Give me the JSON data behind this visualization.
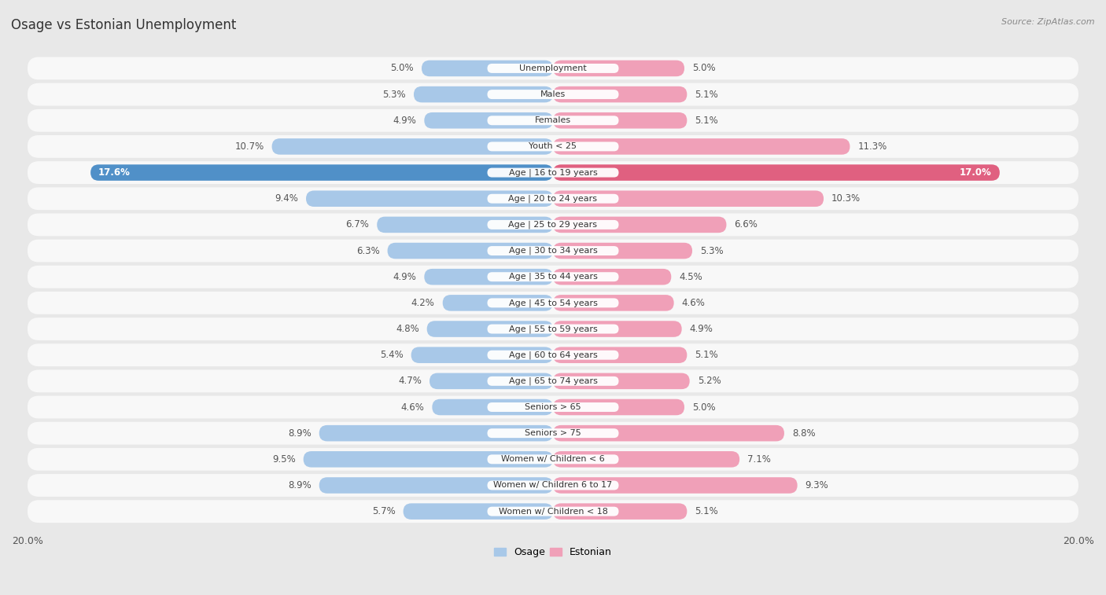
{
  "title": "Osage vs Estonian Unemployment",
  "source": "Source: ZipAtlas.com",
  "categories": [
    "Unemployment",
    "Males",
    "Females",
    "Youth < 25",
    "Age | 16 to 19 years",
    "Age | 20 to 24 years",
    "Age | 25 to 29 years",
    "Age | 30 to 34 years",
    "Age | 35 to 44 years",
    "Age | 45 to 54 years",
    "Age | 55 to 59 years",
    "Age | 60 to 64 years",
    "Age | 65 to 74 years",
    "Seniors > 65",
    "Seniors > 75",
    "Women w/ Children < 6",
    "Women w/ Children 6 to 17",
    "Women w/ Children < 18"
  ],
  "osage_values": [
    5.0,
    5.3,
    4.9,
    10.7,
    17.6,
    9.4,
    6.7,
    6.3,
    4.9,
    4.2,
    4.8,
    5.4,
    4.7,
    4.6,
    8.9,
    9.5,
    8.9,
    5.7
  ],
  "estonian_values": [
    5.0,
    5.1,
    5.1,
    11.3,
    17.0,
    10.3,
    6.6,
    5.3,
    4.5,
    4.6,
    4.9,
    5.1,
    5.2,
    5.0,
    8.8,
    7.1,
    9.3,
    5.1
  ],
  "osage_color": "#a8c8e8",
  "estonian_color": "#f0a0b8",
  "osage_highlight_color": "#5090c8",
  "estonian_highlight_color": "#e06080",
  "highlight_row": 4,
  "x_max": 20.0,
  "background_color": "#e8e8e8",
  "row_bg_color": "#f8f8f8",
  "legend_osage": "Osage",
  "legend_estonian": "Estonian"
}
